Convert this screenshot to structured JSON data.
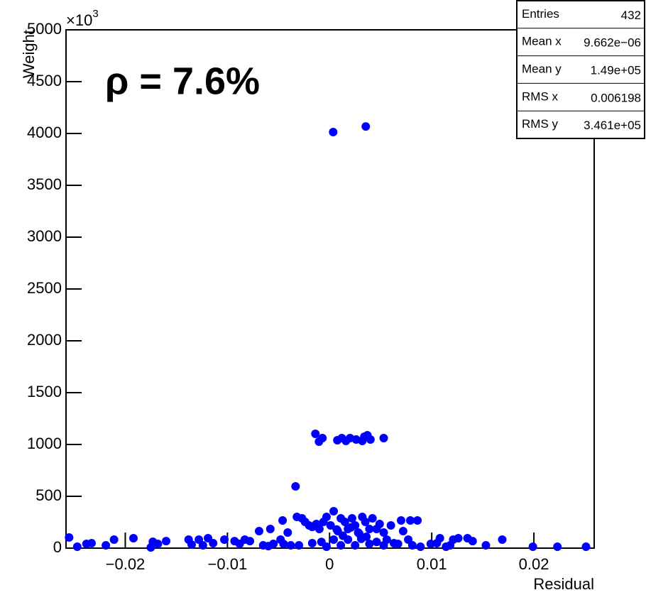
{
  "chart_data": {
    "type": "scatter",
    "annotation": "ρ = 7.6%",
    "x_label": "Residual",
    "y_label": "Weight",
    "y_multiplier": {
      "base": "×10",
      "exponent": "3"
    },
    "xlim": [
      -0.0258,
      0.0259
    ],
    "ylim": [
      0,
      5000
    ],
    "xticks": [
      {
        "value": -0.02,
        "label": "−0.02"
      },
      {
        "value": -0.01,
        "label": "−0.01"
      },
      0,
      0.01,
      0.02
    ],
    "yticks": [
      0,
      500,
      1000,
      1500,
      2000,
      2500,
      3000,
      3500,
      4000,
      4500,
      5000
    ],
    "stats": [
      {
        "label": "Entries",
        "value": "432"
      },
      {
        "label": "Mean x",
        "value": "9.662e−06"
      },
      {
        "label": "Mean y",
        "value": "1.49e+05"
      },
      {
        "label": "RMS x",
        "value": "0.006198"
      },
      {
        "label": "RMS y",
        "value": "3.461e+05"
      }
    ],
    "series": [
      {
        "color": "#0000ff",
        "x": [
          0.00035,
          0.00354,
          -0.00139,
          -0.00104,
          -0.0007,
          0.00076,
          0.0012,
          0.0016,
          0.002,
          0.0026,
          0.0032,
          0.0034,
          0.0037,
          0.004,
          0.0053,
          -0.00333,
          -0.0255,
          -0.0247,
          -0.0238,
          -0.0233,
          -0.0219,
          -0.0211,
          -0.0192,
          -0.0175,
          -0.0173,
          -0.0168,
          -0.016,
          -0.0138,
          -0.0135,
          -0.0128,
          -0.0124,
          -0.0119,
          -0.0114,
          -0.0103,
          -0.0093,
          -0.0088,
          -0.0083,
          -0.0078,
          -0.0069,
          -0.0065,
          -0.0058,
          -0.0055,
          -0.0048,
          -0.0046,
          -0.0041,
          -0.0038,
          -0.0032,
          -0.0027,
          -0.0024,
          -0.002,
          -0.0017,
          -0.0013,
          -0.001,
          -0.0006,
          -0.0003,
          0.0001,
          0.0004,
          0.0008,
          0.0011,
          0.0015,
          0.0018,
          0.0022,
          0.0025,
          0.0028,
          0.0032,
          0.0035,
          0.0039,
          0.0042,
          0.0046,
          0.0049,
          0.0053,
          0.0056,
          0.006,
          0.0063,
          0.007,
          0.0072,
          0.0079,
          0.0086,
          0.0077,
          0.0081,
          0.0089,
          0.0099,
          0.0105,
          0.0108,
          0.0114,
          0.0118,
          0.0121,
          0.0126,
          0.0135,
          0.014,
          0.0153,
          0.0169,
          0.0199,
          0.0223,
          0.0251,
          -0.003,
          -0.0017,
          -0.0003,
          0.0011,
          0.0025,
          0.0039,
          0.0053,
          0.0067,
          0.0018,
          0.0004,
          0.0013,
          0.0029,
          -0.0008,
          0.0021,
          0.0036,
          -0.0045,
          -0.006,
          0.0046,
          0.0007,
          0.0031
        ],
        "values": [
          4014,
          4068,
          1103,
          1027,
          1062,
          1041,
          1062,
          1034,
          1062,
          1048,
          1034,
          1075,
          1089,
          1048,
          1062,
          596,
          103,
          14,
          41,
          48,
          27,
          82,
          96,
          7,
          62,
          41,
          68,
          82,
          34,
          82,
          27,
          96,
          48,
          82,
          68,
          41,
          82,
          68,
          164,
          27,
          185,
          41,
          82,
          267,
          151,
          27,
          301,
          288,
          253,
          219,
          205,
          233,
          185,
          253,
          301,
          219,
          82,
          164,
          288,
          253,
          185,
          288,
          219,
          151,
          301,
          253,
          185,
          288,
          185,
          233,
          151,
          82,
          219,
          48,
          267,
          164,
          267,
          267,
          82,
          27,
          14,
          41,
          48,
          96,
          14,
          27,
          82,
          96,
          96,
          68,
          27,
          82,
          14,
          14,
          14,
          27,
          48,
          14,
          27,
          27,
          41,
          27,
          41,
          82,
          356,
          120,
          140,
          60,
          200,
          110,
          40,
          20,
          60,
          180,
          90
        ]
      }
    ]
  }
}
